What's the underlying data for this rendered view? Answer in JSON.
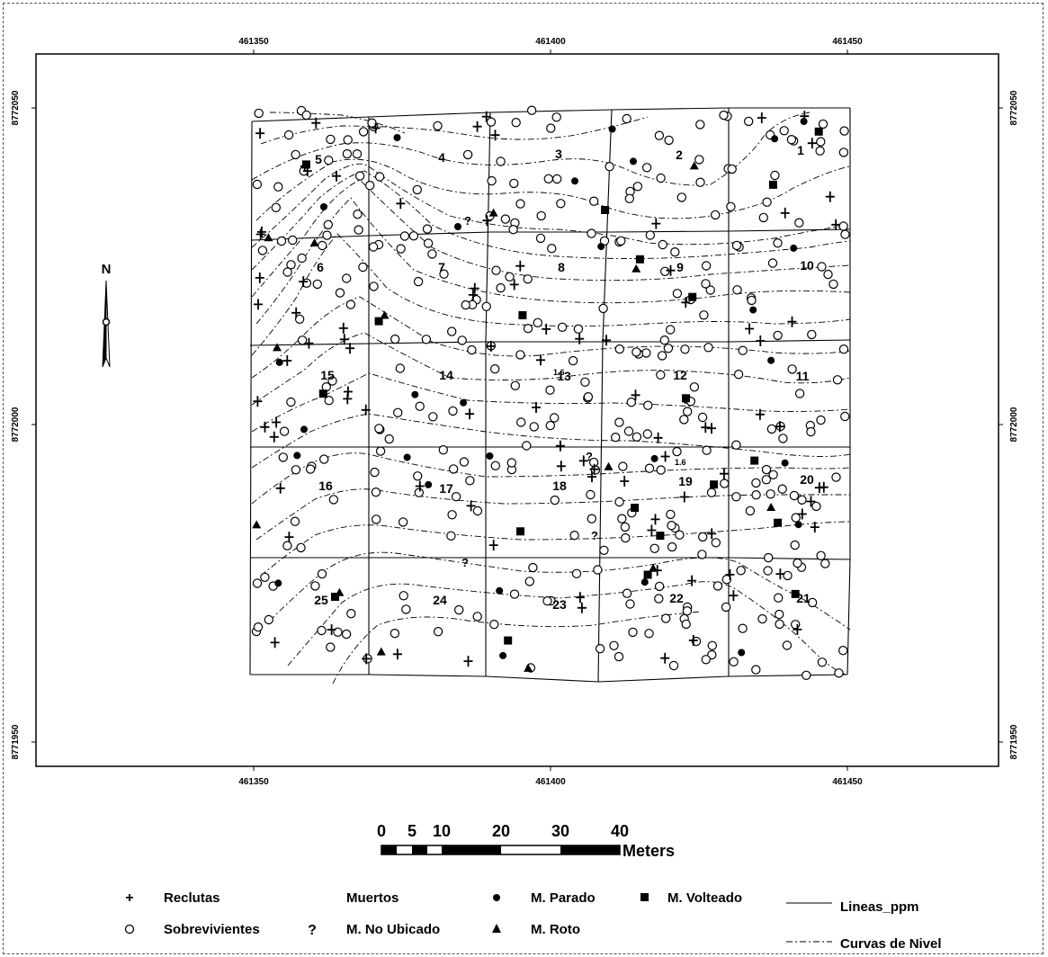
{
  "map": {
    "x_ticks": [
      "461350",
      "461400",
      "461450"
    ],
    "y_ticks": [
      "8772050",
      "8772000",
      "8771950"
    ],
    "north_label": "N",
    "grid_cell_numbers": [
      [
        "5",
        "4",
        "3",
        "2",
        "1"
      ],
      [
        "6",
        "7",
        "8",
        "9",
        "10"
      ],
      [
        "15",
        "14",
        "13",
        "12",
        "11"
      ],
      [
        "16",
        "17",
        "18",
        "19",
        "20"
      ],
      [
        "25",
        "24",
        "23",
        "22",
        "21"
      ]
    ],
    "contour_labels": [
      "1.6",
      "1.6"
    ]
  },
  "scale_bar": {
    "ticks": [
      "0",
      "5",
      "10",
      "20",
      "30",
      "40"
    ],
    "unit": "Meters"
  },
  "legend": {
    "reclutas": {
      "symbol": "+",
      "label": "Reclutas"
    },
    "sobrevivientes": {
      "symbol": "circle-open",
      "label": "Sobrevivientes"
    },
    "muertos": {
      "label": "Muertos"
    },
    "no_ubicado": {
      "symbol": "?",
      "label": "M. No Ubicado"
    },
    "parado": {
      "symbol": "circle-filled",
      "label": "M. Parado"
    },
    "roto": {
      "symbol": "triangle-filled",
      "label": "M. Roto"
    },
    "volteado": {
      "symbol": "square-filled",
      "label": "M. Volteado"
    },
    "lineas": {
      "symbol": "solid-line",
      "label": "Lineas_ppm"
    },
    "curvas": {
      "symbol": "dash-dot-line",
      "label": "Curvas de Nivel"
    }
  },
  "colors": {
    "ink": "#000000",
    "background": "#ffffff"
  }
}
